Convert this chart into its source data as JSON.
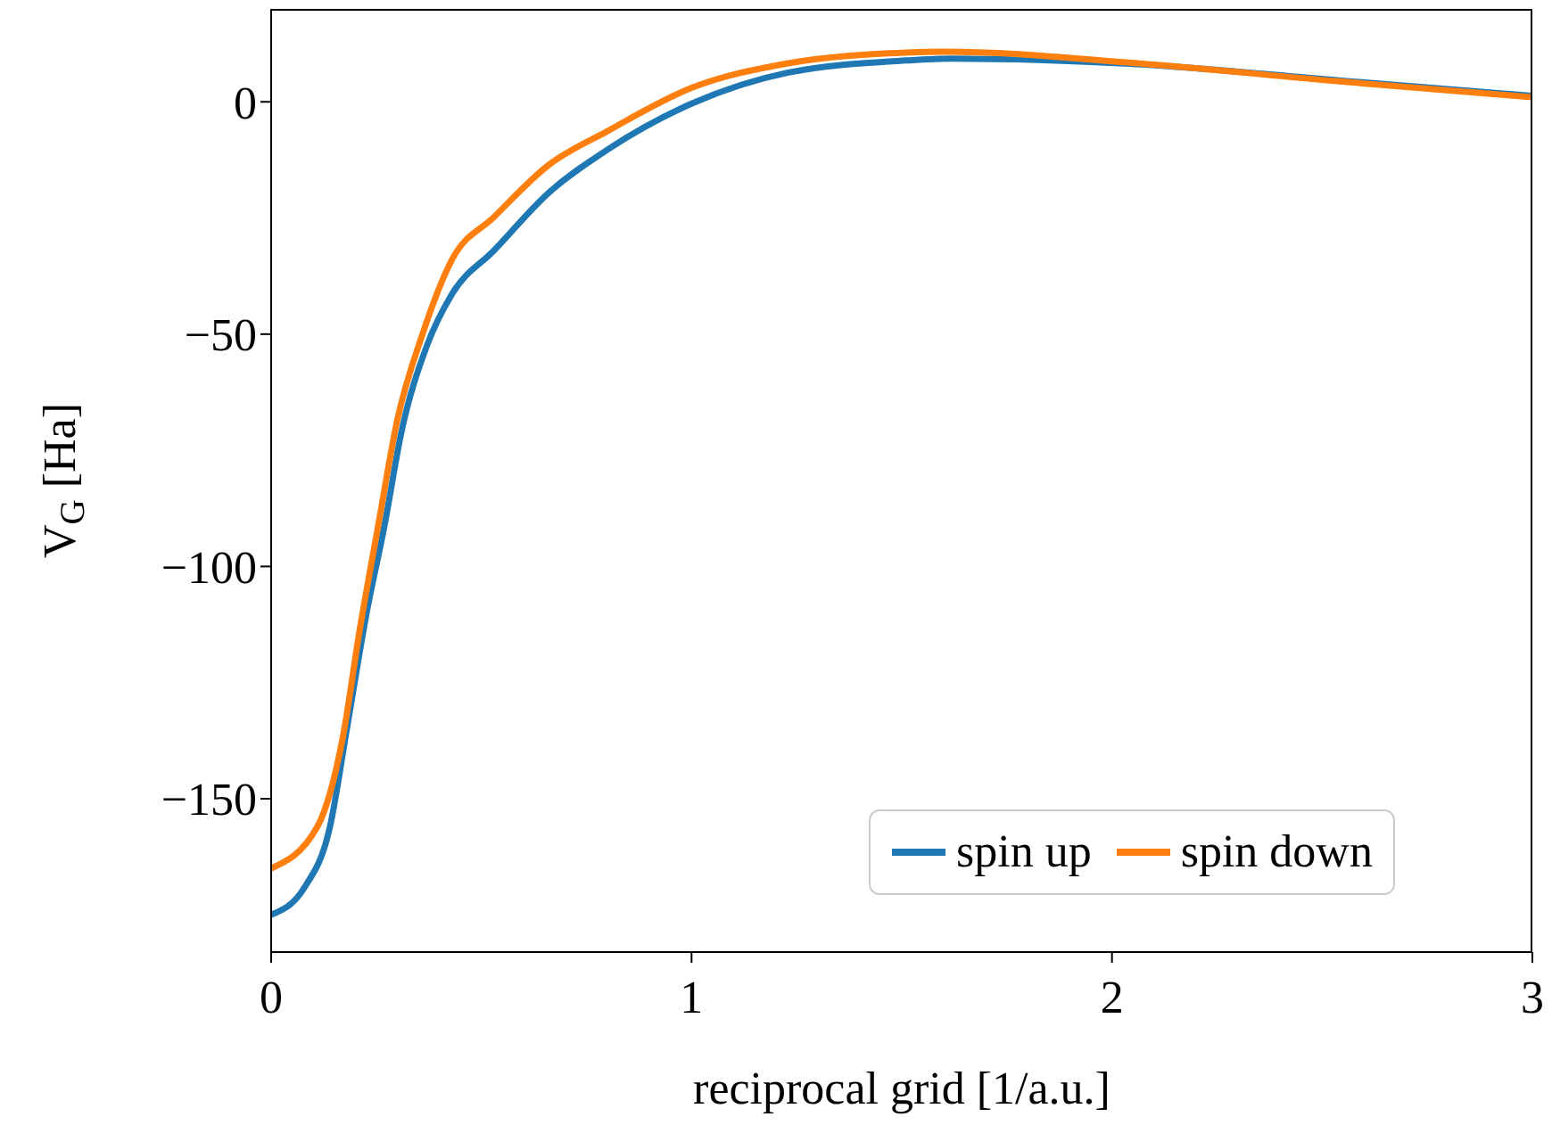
{
  "chart_data": {
    "type": "line",
    "xlabel": "reciprocal grid [1/a.u.]",
    "ylabel": "V$_{G}$ [Ha]",
    "xlim": [
      0,
      3
    ],
    "xticks": [
      0,
      1,
      2,
      3
    ],
    "ylim": [
      -183,
      20
    ],
    "yticks": [
      {
        "value": 0,
        "label": "0"
      },
      {
        "value": -50,
        "label": "−50"
      },
      {
        "value": -100,
        "label": "−100"
      },
      {
        "value": -150,
        "label": "−150"
      }
    ],
    "legend": "bottom right",
    "marker": "none",
    "line_style": "solid",
    "grid": false,
    "series": [
      {
        "name": "spin up",
        "color": "#1f77b4",
        "x": [
          0,
          0.08,
          0.14,
          0.18,
          0.225,
          0.27,
          0.31,
          0.37,
          0.43,
          0.53,
          0.66,
          0.8,
          1.0,
          1.23,
          1.51,
          1.62,
          2.06,
          2.54,
          3.0
        ],
        "values": [
          -175,
          -169,
          -156,
          -135,
          -111,
          -91,
          -71,
          -52.6,
          -41.4,
          -32,
          -19.6,
          -10.3,
          -0.4,
          6.3,
          8.9,
          9.3,
          8.1,
          4.6,
          1.3
        ]
      },
      {
        "name": "spin down",
        "color": "#ff7f0e",
        "x": [
          0,
          0.11,
          0.17,
          0.21,
          0.255,
          0.3,
          0.36,
          0.43,
          0.53,
          0.66,
          0.8,
          1.0,
          1.23,
          1.51,
          1.6,
          2.06,
          2.54,
          3.0
        ],
        "values": [
          -165,
          -156,
          -137,
          -114,
          -91,
          -68.5,
          -50,
          -34,
          -24.8,
          -13.6,
          -6.3,
          3,
          8.3,
          10.6,
          10.8,
          8.3,
          4.4,
          1.0
        ]
      }
    ]
  }
}
